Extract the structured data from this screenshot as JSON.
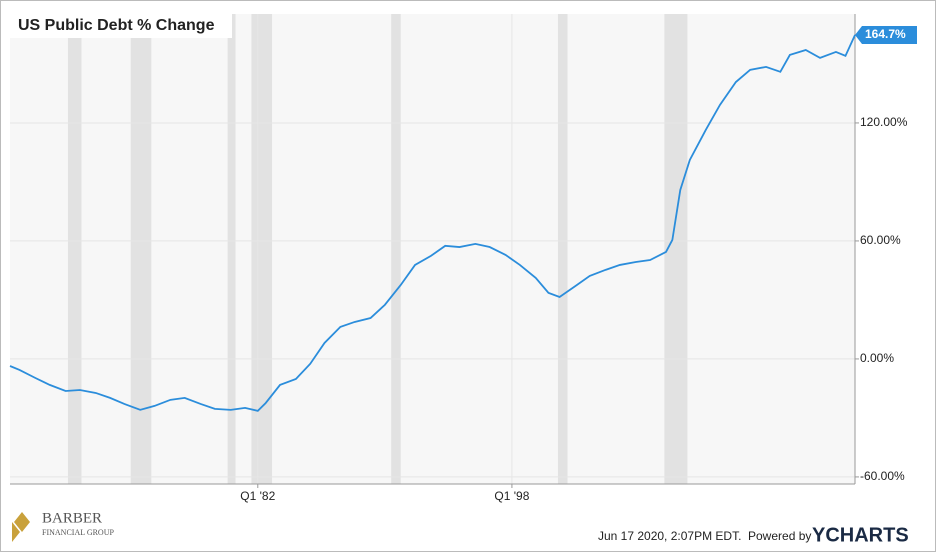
{
  "chart_data": {
    "type": "line",
    "title": "US Public Debt % Change",
    "x": [
      1966.4,
      1967.0,
      1968.0,
      1968.9,
      1969.9,
      1970.8,
      1971.8,
      1972.7,
      1973.6,
      1974.6,
      1975.5,
      1976.5,
      1977.4,
      1978.4,
      1979.3,
      1980.3,
      1981.2,
      1982.0,
      1982.5,
      1983.4,
      1984.4,
      1985.3,
      1986.2,
      1987.2,
      1988.1,
      1989.1,
      1990.0,
      1991.0,
      1991.9,
      1992.9,
      1993.8,
      1994.7,
      1995.7,
      1996.6,
      1997.6,
      1998.5,
      1999.5,
      2000.3,
      2001.0,
      2002.0,
      2002.9,
      2003.9,
      2004.8,
      2005.8,
      2006.7,
      2007.7,
      2008.1,
      2008.6,
      2009.2,
      2010.2,
      2011.1,
      2012.1,
      2013.0,
      2014.0,
      2014.9,
      2015.5,
      2016.5,
      2017.4,
      2018.4,
      2019.0,
      2019.6
    ],
    "series": [
      {
        "name": "US Public Debt % Change",
        "color": "#2b8ddb",
        "values": [
          -3.6,
          -5.6,
          -9.7,
          -13.2,
          -16.3,
          -15.8,
          -17.3,
          -19.8,
          -22.9,
          -25.9,
          -23.9,
          -20.8,
          -19.8,
          -22.9,
          -25.4,
          -25.9,
          -24.9,
          -26.4,
          -22.4,
          -13.2,
          -10.2,
          -2.5,
          8.1,
          16.3,
          18.8,
          20.8,
          27.5,
          37.6,
          47.8,
          52.4,
          57.5,
          56.9,
          58.5,
          56.9,
          52.9,
          47.8,
          41.2,
          33.6,
          31.5,
          37.1,
          42.2,
          45.3,
          47.8,
          49.3,
          50.3,
          54.4,
          60.5,
          85.9,
          101.2,
          116.4,
          129.2,
          140.8,
          147.0,
          148.5,
          146.0,
          154.6,
          157.1,
          153.1,
          156.1,
          154.1,
          164.7
        ],
        "value_labels": [
          null,
          null,
          null,
          null,
          null,
          null,
          null,
          null,
          null,
          null,
          null,
          null,
          null,
          null,
          null,
          null,
          null,
          null,
          null,
          null,
          null,
          null,
          null,
          null,
          null,
          null,
          null,
          null,
          null,
          null,
          null,
          null,
          null,
          null,
          null,
          null,
          null,
          null,
          null,
          null,
          null,
          null,
          null,
          null,
          null,
          null,
          null,
          null,
          null,
          null,
          null,
          null,
          null,
          null,
          null,
          null,
          null,
          null,
          null,
          null,
          "164.7%"
        ]
      }
    ],
    "xlim": [
      1966.4,
      2019.6
    ],
    "xticks": [
      {
        "value": 1982,
        "label": "Q1 '82"
      },
      {
        "value": 1998,
        "label": "Q1 '98"
      }
    ],
    "ylim": [
      -63.6,
      175.4
    ],
    "yticks": [
      {
        "value": -60,
        "label": "-60.00%"
      },
      {
        "value": 0,
        "label": "0.00%"
      },
      {
        "value": 60,
        "label": "60.00%"
      },
      {
        "value": 120,
        "label": "120.00%"
      }
    ],
    "grid": true,
    "recessions": [
      [
        1970.05,
        1970.9
      ],
      [
        1974.0,
        1975.3
      ],
      [
        1980.1,
        1980.6
      ],
      [
        1981.6,
        1982.9
      ],
      [
        1990.4,
        1991.0
      ],
      [
        2000.9,
        2001.5
      ],
      [
        2007.6,
        2009.05
      ]
    ]
  },
  "footer": {
    "timestamp": "Jun 17 2020, 2:07PM EDT.",
    "powered": "Powered by",
    "brand": "YCHARTS",
    "logo_name": "BARBER",
    "logo_sub": "FINANCIAL GROUP"
  }
}
